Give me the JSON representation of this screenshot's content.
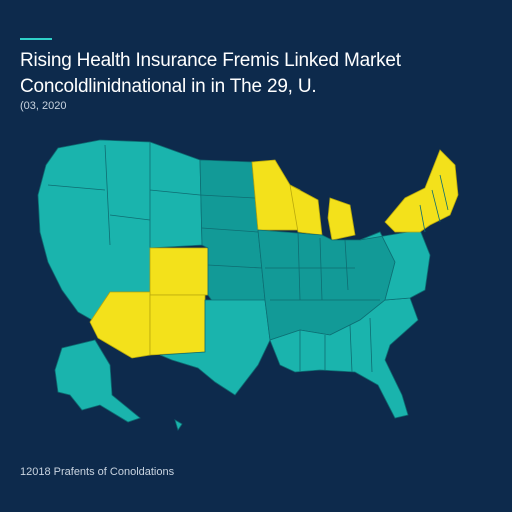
{
  "header": {
    "title_line1": "Rising Health Insurance Fremis Linked Market",
    "title_line2": "Concoldlinidnational in in The 29, U.",
    "subtitle": "(03, 2020"
  },
  "footer": {
    "caption": "12018 Prafents of Conoldations"
  },
  "legend_colors": {
    "background": "#0d2a4c",
    "teal": "#1ab4ad",
    "teal_dark": "#129a97",
    "yellow": "#f3e11b"
  }
}
